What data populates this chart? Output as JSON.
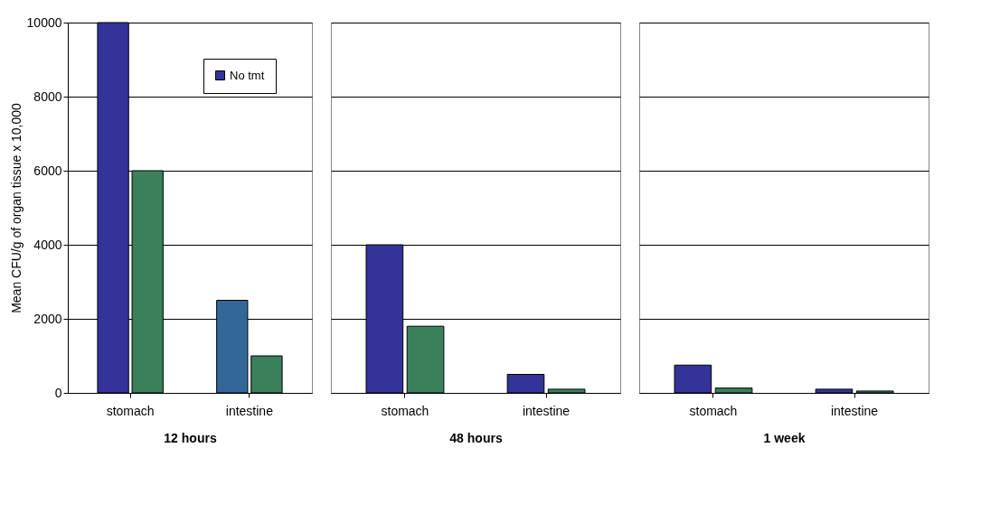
{
  "chart_data": [
    {
      "type": "bar",
      "categories": [
        "stomach",
        "intestine"
      ],
      "xlabel": "12 hours",
      "ylabel": "Mean CFU/g of organ tissue x 10,000",
      "ylim": [
        0,
        10000
      ],
      "yticks": [
        0,
        2000,
        4000,
        6000,
        8000,
        10000
      ],
      "grid": "y",
      "legend": "top right",
      "series": [
        {
          "name": "No tmt",
          "color": "#333399",
          "colors": [
            "#333399",
            "#336699"
          ],
          "values": [
            10000,
            2500
          ]
        },
        {
          "color": "#3b7f5b",
          "values": [
            6000,
            1000
          ]
        }
      ]
    },
    {
      "type": "bar",
      "categories": [
        "stomach",
        "intestine"
      ],
      "xlabel": "48 hours",
      "ylim": [
        0,
        10000
      ],
      "yticks": [
        0,
        2000,
        4000,
        6000,
        8000,
        10000
      ],
      "grid": "y",
      "tick_labels": "x",
      "series": [
        {
          "color": "#333399",
          "values": [
            4000,
            500
          ]
        },
        {
          "color": "#3b7f5b",
          "values": [
            1800,
            100
          ]
        }
      ]
    },
    {
      "type": "bar",
      "categories": [
        "stomach",
        "intestine"
      ],
      "xlabel": "1 week",
      "ylim": [
        0,
        10000
      ],
      "yticks": [
        0,
        2000,
        4000,
        6000,
        8000,
        10000
      ],
      "grid": "y",
      "tick_labels": "x",
      "series": [
        {
          "color": "#333399",
          "values": [
            750,
            100
          ]
        },
        {
          "color": "#3b7f5b",
          "values": [
            130,
            50
          ]
        }
      ]
    }
  ]
}
